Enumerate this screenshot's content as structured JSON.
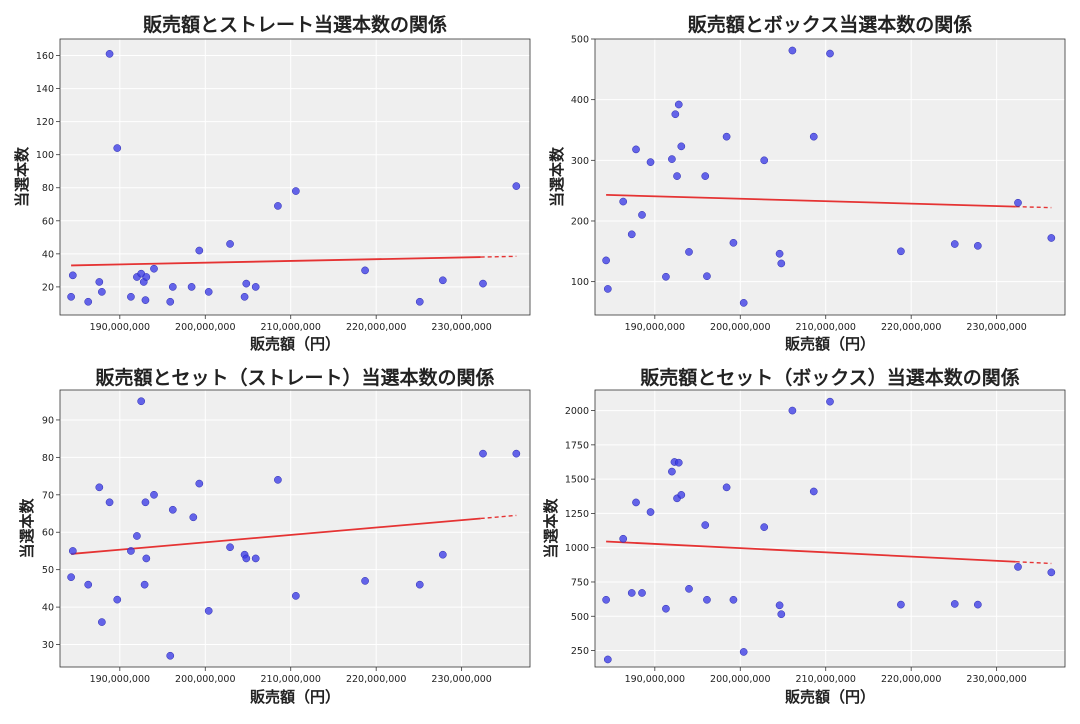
{
  "chart_data": [
    {
      "type": "scatter",
      "title": "販売額とストレート当選本数の関係",
      "xlabel": "販売額（円）",
      "ylabel": "当選本数",
      "xlim": [
        183000000,
        238000000
      ],
      "ylim": [
        3,
        170
      ],
      "xticks": [
        190000000,
        200000000,
        210000000,
        220000000,
        230000000
      ],
      "xtick_labels": [
        "190,000,000",
        "200,000,000",
        "210,000,000",
        "220,000,000",
        "230,000,000"
      ],
      "yticks": [
        20,
        40,
        60,
        80,
        100,
        120,
        140,
        160
      ],
      "ytick_labels": [
        "20",
        "40",
        "60",
        "80",
        "100",
        "120",
        "140",
        "160"
      ],
      "grid": true,
      "point_color": "#3b3be6",
      "trend_color": "#e53333",
      "x": [
        184300000,
        184500000,
        186300000,
        187600000,
        187900000,
        188800000,
        189700000,
        191300000,
        192000000,
        192500000,
        192800000,
        193000000,
        193100000,
        194000000,
        195900000,
        196200000,
        198400000,
        199300000,
        200400000,
        202900000,
        204600000,
        204800000,
        205900000,
        208500000,
        210600000,
        218700000,
        225100000,
        227800000,
        232500000,
        236400000
      ],
      "y": [
        14,
        27,
        11,
        23,
        17,
        161,
        104,
        14,
        26,
        28,
        23,
        12,
        26,
        31,
        11,
        20,
        20,
        42,
        17,
        46,
        14,
        22,
        20,
        69,
        78,
        30,
        11,
        24,
        22,
        81
      ],
      "trend": {
        "x": [
          184300000,
          236400000
        ],
        "y": [
          33.0,
          38.5
        ]
      }
    },
    {
      "type": "scatter",
      "title": "販売額とボックス当選本数の関係",
      "xlabel": "販売額（円）",
      "ylabel": "当選本数",
      "xlim": [
        183000000,
        238000000
      ],
      "ylim": [
        45,
        500
      ],
      "xticks": [
        190000000,
        200000000,
        210000000,
        220000000,
        230000000
      ],
      "xtick_labels": [
        "190,000,000",
        "200,000,000",
        "210,000,000",
        "220,000,000",
        "230,000,000"
      ],
      "yticks": [
        100,
        200,
        300,
        400,
        500
      ],
      "ytick_labels": [
        "100",
        "200",
        "300",
        "400",
        "500"
      ],
      "grid": true,
      "point_color": "#3b3be6",
      "trend_color": "#e53333",
      "x": [
        184300000,
        184500000,
        186300000,
        187300000,
        187800000,
        188500000,
        189500000,
        191300000,
        192000000,
        192400000,
        192600000,
        192800000,
        193100000,
        194000000,
        195900000,
        196100000,
        198400000,
        199200000,
        200400000,
        202800000,
        204600000,
        204800000,
        206100000,
        208600000,
        210500000,
        218800000,
        225100000,
        227800000,
        232500000,
        236400000
      ],
      "y": [
        135,
        88,
        232,
        178,
        318,
        210,
        297,
        108,
        302,
        376,
        274,
        392,
        323,
        149,
        274,
        109,
        339,
        164,
        65,
        300,
        146,
        130,
        481,
        339,
        476,
        150,
        162,
        159,
        230,
        172
      ],
      "trend": {
        "x": [
          184300000,
          236400000
        ],
        "y": [
          243,
          222
        ]
      }
    },
    {
      "type": "scatter",
      "title": "販売額とセット（ストレート）当選本数の関係",
      "xlabel": "販売額（円）",
      "ylabel": "当選本数",
      "xlim": [
        183000000,
        238000000
      ],
      "ylim": [
        24,
        98
      ],
      "xticks": [
        190000000,
        200000000,
        210000000,
        220000000,
        230000000
      ],
      "xtick_labels": [
        "190,000,000",
        "200,000,000",
        "210,000,000",
        "220,000,000",
        "230,000,000"
      ],
      "yticks": [
        30,
        40,
        50,
        60,
        70,
        80,
        90
      ],
      "ytick_labels": [
        "30",
        "40",
        "50",
        "60",
        "70",
        "80",
        "90"
      ],
      "grid": true,
      "point_color": "#3b3be6",
      "trend_color": "#e53333",
      "x": [
        184300000,
        184500000,
        186300000,
        187600000,
        187900000,
        188800000,
        189700000,
        191300000,
        192000000,
        192500000,
        192900000,
        193000000,
        193100000,
        194000000,
        195900000,
        196200000,
        198600000,
        199300000,
        200400000,
        202900000,
        204600000,
        204800000,
        205900000,
        208500000,
        210600000,
        218700000,
        225100000,
        227800000,
        232500000,
        236400000
      ],
      "y": [
        48,
        55,
        46,
        72,
        36,
        68,
        42,
        55,
        59,
        95,
        46,
        68,
        53,
        70,
        27,
        66,
        64,
        73,
        39,
        56,
        54,
        53,
        53,
        74,
        43,
        47,
        46,
        54,
        81,
        81
      ],
      "trend": {
        "x": [
          184300000,
          236400000
        ],
        "y": [
          54.2,
          64.5
        ]
      }
    },
    {
      "type": "scatter",
      "title": "販売額とセット（ボックス）当選本数の関係",
      "xlabel": "販売額（円）",
      "ylabel": "当選本数",
      "xlim": [
        183000000,
        238000000
      ],
      "ylim": [
        130,
        2150
      ],
      "xticks": [
        190000000,
        200000000,
        210000000,
        220000000,
        230000000
      ],
      "xtick_labels": [
        "190,000,000",
        "200,000,000",
        "210,000,000",
        "220,000,000",
        "230,000,000"
      ],
      "yticks": [
        250,
        500,
        750,
        1000,
        1250,
        1500,
        1750,
        2000
      ],
      "ytick_labels": [
        "250",
        "500",
        "750",
        "1000",
        "1250",
        "1500",
        "1750",
        "2000"
      ],
      "grid": true,
      "point_color": "#3b3be6",
      "trend_color": "#e53333",
      "x": [
        184300000,
        184500000,
        186300000,
        187300000,
        187800000,
        188500000,
        189500000,
        191300000,
        192000000,
        192300000,
        192600000,
        192800000,
        193100000,
        194000000,
        195900000,
        196100000,
        198400000,
        199200000,
        200400000,
        202800000,
        204600000,
        204800000,
        206100000,
        208600000,
        210500000,
        218800000,
        225100000,
        227800000,
        232500000,
        236400000
      ],
      "y": [
        620,
        185,
        1065,
        670,
        1330,
        670,
        1260,
        555,
        1555,
        1625,
        1360,
        1620,
        1385,
        700,
        1165,
        620,
        1440,
        620,
        240,
        1150,
        580,
        515,
        2000,
        1410,
        2065,
        585,
        590,
        585,
        860,
        820
      ],
      "trend": {
        "x": [
          184300000,
          236400000
        ],
        "y": [
          1045,
          885
        ]
      }
    }
  ]
}
